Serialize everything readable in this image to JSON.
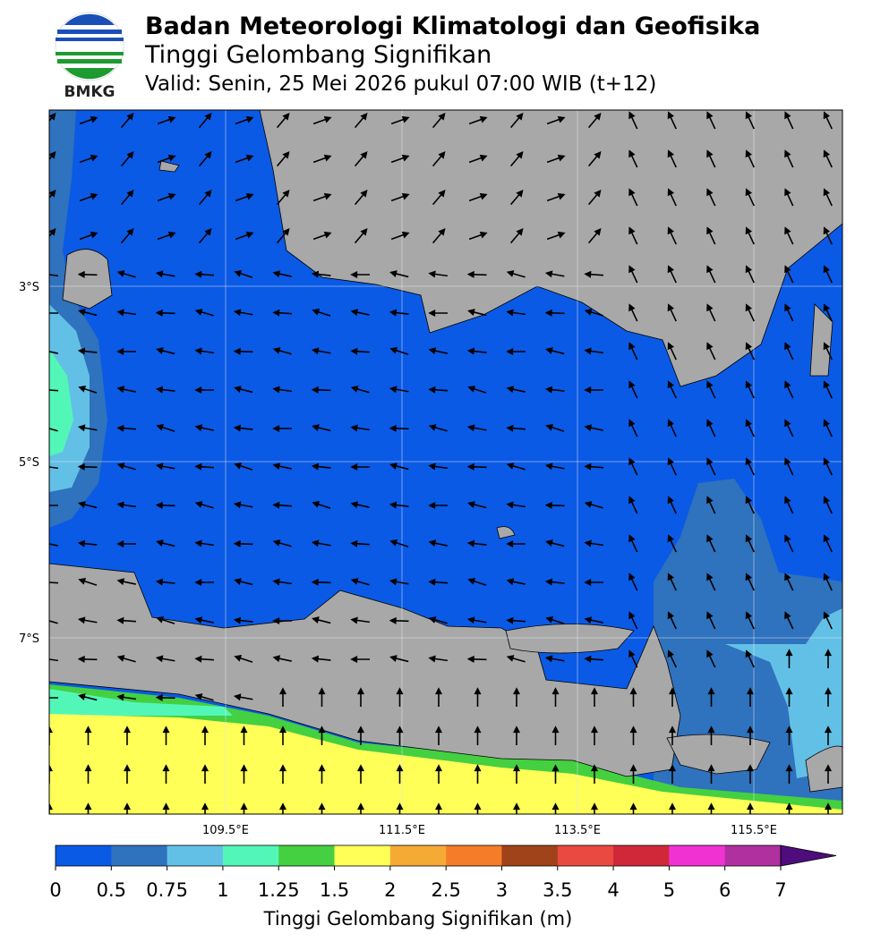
{
  "header": {
    "title": "Badan Meteorologi Klimatologi dan Geofisika",
    "subtitle": "Tinggi Gelombang Signifikan",
    "valid": "Valid: Senin, 25 Mei 2026 pukul 07:00 WIB (t+12)",
    "logo_text": "BMKG"
  },
  "map": {
    "lat_labels": [
      "3°S",
      "5°S",
      "7°S"
    ],
    "lon_labels": [
      "109.5°E",
      "111.5°E",
      "113.5°E",
      "115.5°E"
    ]
  },
  "colorbar": {
    "ticks": [
      0,
      0.5,
      0.75,
      1,
      1.25,
      1.5,
      2,
      2.5,
      3,
      3.5,
      4,
      5,
      6,
      7
    ],
    "colors": [
      "#0a5ae6",
      "#2f72bd",
      "#62c0e6",
      "#52f7b8",
      "#44d040",
      "#ffff58",
      "#f5aa35",
      "#f57c28",
      "#a0421a",
      "#e84a40",
      "#d02838",
      "#f032d2",
      "#b0309f"
    ],
    "extend_color": "#4e0c7c",
    "label": "Tinggi Gelombang Signifikan (m)"
  }
}
